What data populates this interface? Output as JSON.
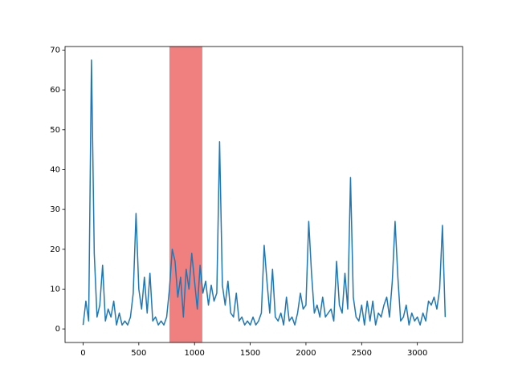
{
  "chart_data": {
    "type": "line",
    "x": [
      0,
      25,
      50,
      75,
      100,
      125,
      150,
      175,
      200,
      225,
      250,
      275,
      300,
      325,
      350,
      375,
      400,
      425,
      450,
      475,
      500,
      525,
      550,
      575,
      600,
      625,
      650,
      675,
      700,
      725,
      750,
      775,
      800,
      825,
      850,
      875,
      900,
      925,
      950,
      975,
      1000,
      1025,
      1050,
      1075,
      1100,
      1125,
      1150,
      1175,
      1200,
      1225,
      1250,
      1275,
      1300,
      1325,
      1350,
      1375,
      1400,
      1425,
      1450,
      1475,
      1500,
      1525,
      1550,
      1575,
      1600,
      1625,
      1650,
      1675,
      1700,
      1725,
      1750,
      1775,
      1800,
      1825,
      1850,
      1875,
      1900,
      1925,
      1950,
      1975,
      2000,
      2025,
      2050,
      2075,
      2100,
      2125,
      2150,
      2175,
      2200,
      2225,
      2250,
      2275,
      2300,
      2325,
      2350,
      2375,
      2400,
      2425,
      2450,
      2475,
      2500,
      2525,
      2550,
      2575,
      2600,
      2625,
      2650,
      2675,
      2700,
      2725,
      2750,
      2775,
      2800,
      2825,
      2850,
      2875,
      2900,
      2925,
      2950,
      2975,
      3000,
      3025,
      3050,
      3075,
      3100,
      3125,
      3150,
      3175,
      3200,
      3225,
      3250
    ],
    "series": [
      {
        "color": "#1f77b4",
        "values": [
          1,
          7,
          2,
          67.5,
          19,
          3,
          6,
          16,
          2,
          5,
          3,
          7,
          1,
          4,
          1,
          2,
          1,
          3,
          9,
          29,
          10,
          5,
          13,
          4,
          14,
          2,
          3,
          1,
          2,
          1,
          3,
          10,
          20,
          17,
          8,
          13,
          3,
          15,
          10,
          19,
          12,
          5,
          16,
          9,
          12,
          6,
          11,
          7,
          9,
          47,
          11,
          6,
          12,
          4,
          3,
          9,
          2,
          3,
          1,
          2,
          1,
          3,
          1,
          2,
          4,
          21,
          12,
          4,
          15,
          3,
          2,
          4,
          1,
          8,
          2,
          3,
          1,
          4,
          9,
          5,
          6,
          27,
          14,
          4,
          6,
          3,
          8,
          3,
          4,
          5,
          2,
          17,
          6,
          4,
          14,
          5,
          38,
          8,
          3,
          2,
          6,
          1,
          7,
          2,
          7,
          1,
          4,
          3,
          6,
          8,
          3,
          12,
          27,
          13,
          2,
          3,
          6,
          1,
          4,
          2,
          3,
          1,
          4,
          2,
          7,
          6,
          8,
          5,
          10,
          26,
          3
        ]
      }
    ],
    "span": {
      "x": [
        775,
        1070
      ],
      "color": "#f08080"
    },
    "xlim": [
      -162,
      3406
    ],
    "ylim": [
      -3.4,
      70.9
    ],
    "xticks": [
      0,
      500,
      1000,
      1500,
      2000,
      2500,
      3000
    ],
    "yticks": [
      0,
      10,
      20,
      30,
      40,
      50,
      60,
      70
    ]
  }
}
